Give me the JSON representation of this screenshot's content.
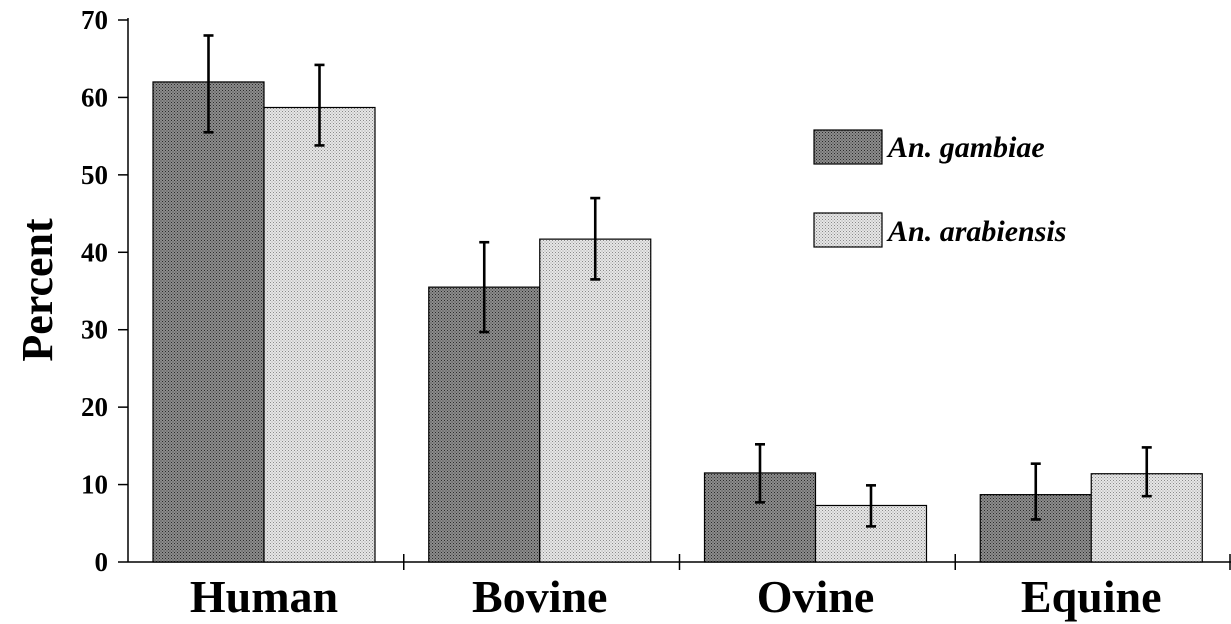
{
  "chart_data": {
    "type": "bar",
    "title": "",
    "xlabel": "",
    "ylabel": "Percent",
    "ylim": [
      0,
      70
    ],
    "yticks": [
      0,
      10,
      20,
      30,
      40,
      50,
      60,
      70
    ],
    "grid": false,
    "legend_position": "top-right",
    "categories": [
      "Human",
      "Bovine",
      "Ovine",
      "Equine"
    ],
    "series": [
      {
        "name": "An. gambiae",
        "color": "#7a7a7a",
        "values": [
          62,
          35.5,
          11.5,
          8.7
        ],
        "error_low": [
          55.5,
          29.7,
          7.7,
          5.5
        ],
        "error_high": [
          68,
          41.3,
          15.2,
          12.7
        ]
      },
      {
        "name": "An. arabiensis",
        "color": "#d6d6d6",
        "values": [
          58.7,
          41.7,
          7.3,
          11.4
        ],
        "error_low": [
          53.8,
          36.5,
          4.6,
          8.5
        ],
        "error_high": [
          64.2,
          47,
          9.9,
          14.8
        ]
      }
    ]
  }
}
